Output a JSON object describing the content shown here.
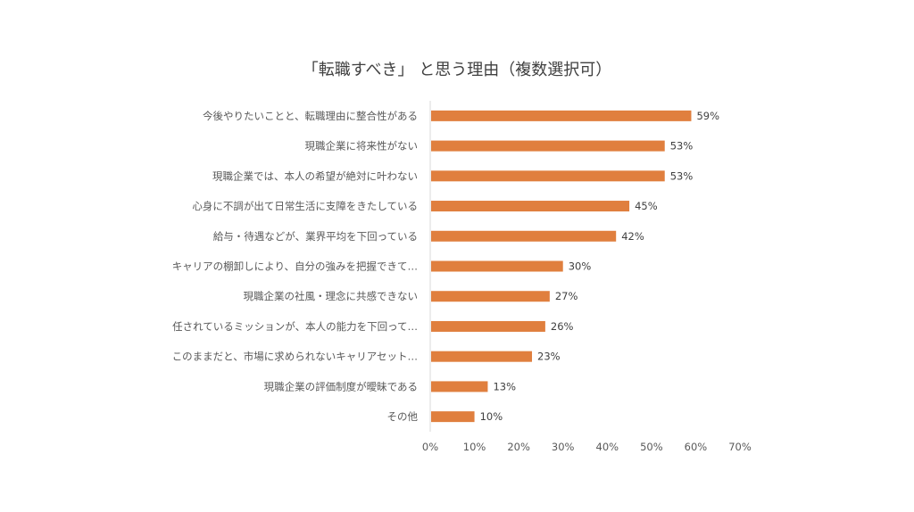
{
  "chart_data": {
    "type": "bar",
    "orientation": "horizontal",
    "title": "「転職すべき」 と思う理由（複数選択可）",
    "categories": [
      "今後やりたいことと、転職理由に整合性がある",
      "現職企業に将来性がない",
      "現職企業では、本人の希望が絶対に叶わない",
      "心身に不調が出て日常生活に支障をきたしている",
      "給与・待遇などが、業界平均を下回っている",
      "キャリアの棚卸しにより、自分の強みを把握できて…",
      "現職企業の社風・理念に共感できない",
      "任されているミッションが、本人の能力を下回って…",
      "このままだと、市場に求められないキャリアセット…",
      "現職企業の評価制度が曖昧である",
      "その他"
    ],
    "values": [
      59,
      53,
      53,
      45,
      42,
      30,
      27,
      26,
      23,
      13,
      10
    ],
    "data_labels": [
      "59%",
      "53%",
      "53%",
      "45%",
      "42%",
      "30%",
      "27%",
      "26%",
      "23%",
      "13%",
      "10%"
    ],
    "x_ticks": [
      "0%",
      "10%",
      "20%",
      "30%",
      "40%",
      "50%",
      "60%",
      "70%"
    ],
    "xlim": [
      0,
      70
    ],
    "xlabel": "",
    "ylabel": "",
    "grid": false,
    "legend": "none",
    "bar_color": "#E07F3E",
    "text_color": "#595959"
  }
}
